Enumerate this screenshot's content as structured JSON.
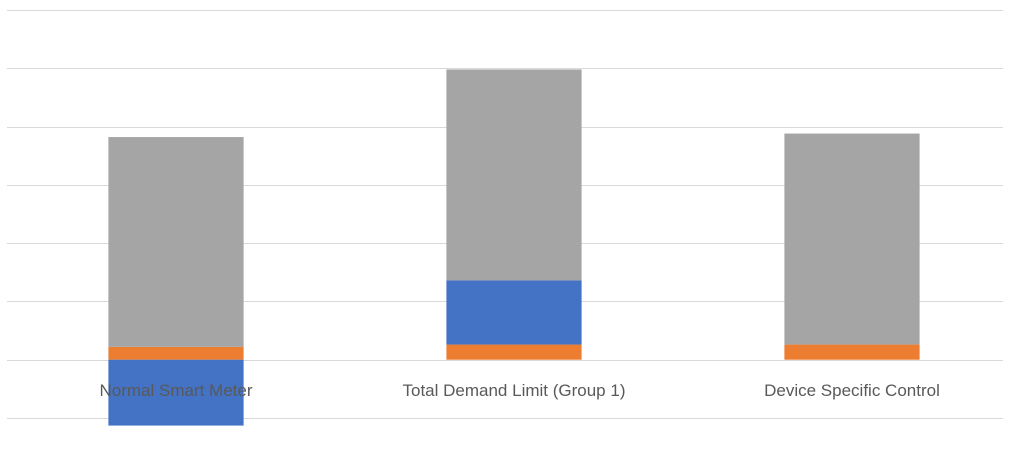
{
  "chart_data": {
    "type": "bar",
    "stacked": true,
    "categories": [
      "Normal Smart Meter",
      "Total Demand Limit (Group 1)",
      "Device Specific Control"
    ],
    "series": [
      {
        "color": "#ed7d31",
        "values": [
          0.22,
          0.26,
          0.26
        ]
      },
      {
        "color": "#4472c4",
        "values": [
          -1.13,
          1.1,
          0
        ]
      },
      {
        "color": "#a5a5a5",
        "values": [
          3.6,
          3.62,
          3.62
        ]
      }
    ],
    "ylim": [
      -1,
      6
    ],
    "yticks": [
      -1,
      0,
      1,
      2,
      3,
      4,
      5,
      6
    ],
    "grid": true
  }
}
